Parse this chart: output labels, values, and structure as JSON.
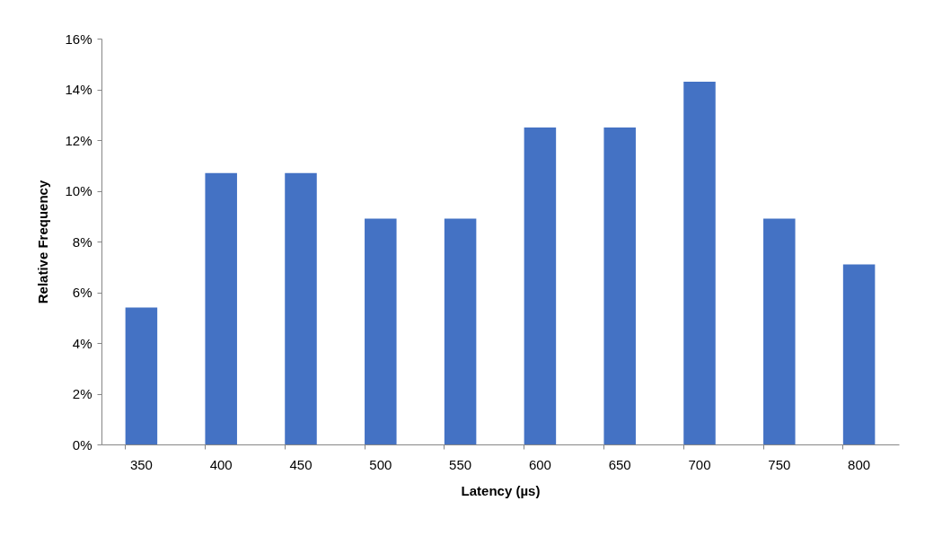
{
  "chart_data": {
    "type": "bar",
    "xlabel": "Latency (µs)",
    "ylabel": "Relative Frequency",
    "categories": [
      "350",
      "400",
      "450",
      "500",
      "550",
      "600",
      "650",
      "700",
      "750",
      "800"
    ],
    "values": [
      5.4,
      10.7,
      10.7,
      8.9,
      8.9,
      12.5,
      12.5,
      14.3,
      8.9,
      7.1
    ],
    "color": "#4472c4",
    "ylim": [
      0,
      16
    ],
    "yticks": [
      {
        "value": 0,
        "label": "0%"
      },
      {
        "value": 2,
        "label": "2%"
      },
      {
        "value": 4,
        "label": "4%"
      },
      {
        "value": 6,
        "label": "6%"
      },
      {
        "value": 8,
        "label": "8%"
      },
      {
        "value": 10,
        "label": "10%"
      },
      {
        "value": 12,
        "label": "12%"
      },
      {
        "value": 14,
        "label": "14%"
      },
      {
        "value": 16,
        "label": "16%"
      }
    ],
    "grid": false
  }
}
